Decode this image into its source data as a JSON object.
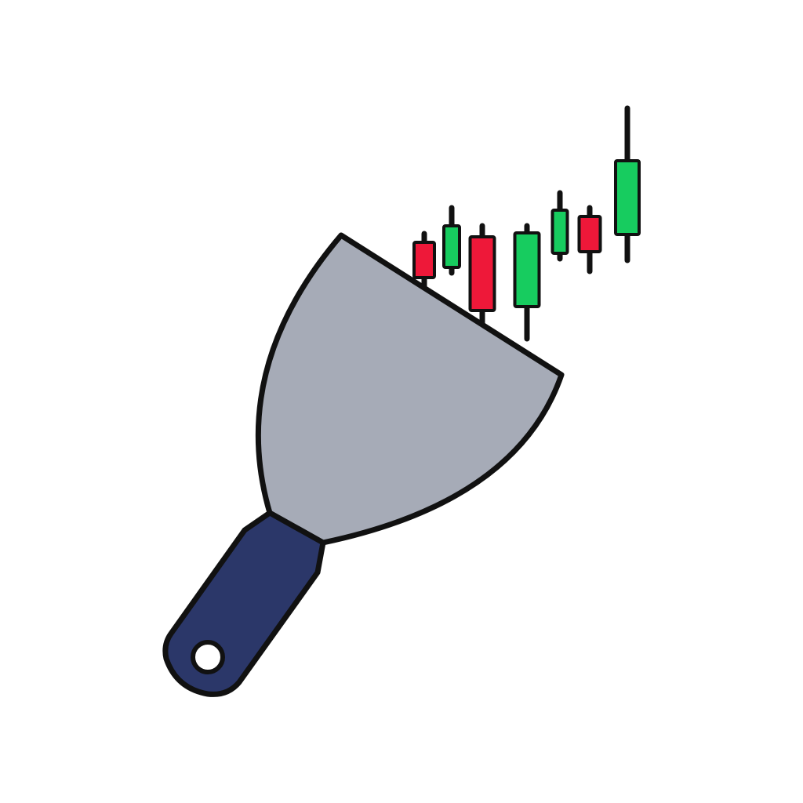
{
  "colors": {
    "background": "#ffffff",
    "outline": "#111111",
    "blade": "#a6abb7",
    "handle": "#2b3769",
    "hang_hole": "#ffffff",
    "candle_up": "#17cc5f",
    "candle_down": "#ee1839"
  },
  "icons": {
    "tool": "putty-knife-icon",
    "chart": "candlestick-chart-icon"
  },
  "candles": [
    {
      "direction": "down"
    },
    {
      "direction": "up"
    },
    {
      "direction": "down"
    },
    {
      "direction": "up"
    },
    {
      "direction": "up"
    },
    {
      "direction": "down"
    },
    {
      "direction": "up"
    }
  ]
}
